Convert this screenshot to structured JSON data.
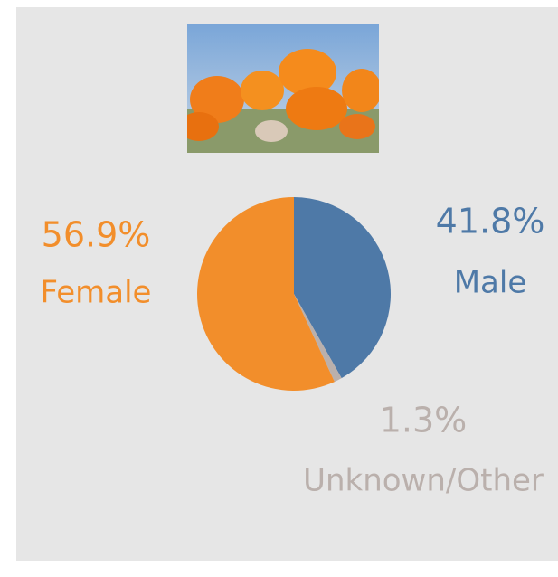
{
  "chart_data": {
    "type": "pie",
    "categories": [
      "Male",
      "Unknown/Other",
      "Female"
    ],
    "values": [
      41.8,
      1.3,
      56.9
    ],
    "value_labels": [
      "41.8%",
      "1.3%",
      "56.9%"
    ],
    "colors": [
      "#4e79a7",
      "#bab0ac",
      "#f28e2b"
    ]
  }
}
